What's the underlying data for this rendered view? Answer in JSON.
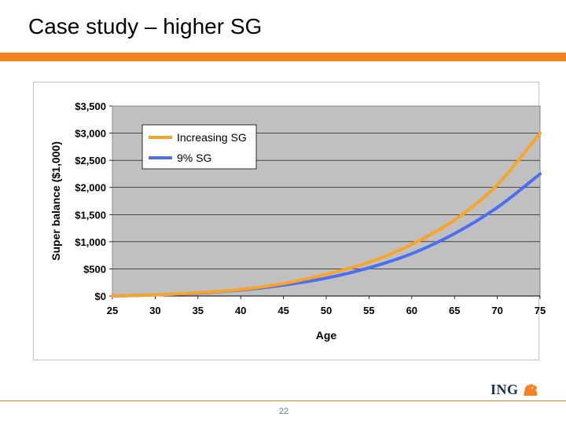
{
  "slide": {
    "title": "Case study – higher SG",
    "page_number": "22",
    "logo_text": "ING",
    "logo_icon": "lion-icon"
  },
  "colors": {
    "accent": "#f5821f",
    "plot_bg": "#c0c0c0",
    "increasing_sg": "#f7a42c",
    "nine_pct_sg": "#4a6ff0",
    "logo_text": "#1a2c5b",
    "page_number": "#5b7bbf"
  },
  "chart_data": {
    "type": "line",
    "title": "",
    "xlabel": "Age",
    "ylabel": "Super balance ($1,000)",
    "xlim": [
      25,
      75
    ],
    "ylim": [
      0,
      3500
    ],
    "x_ticks": [
      "25",
      "30",
      "35",
      "40",
      "45",
      "50",
      "55",
      "60",
      "65",
      "70",
      "75"
    ],
    "y_ticks": [
      "$0",
      "$500",
      "$1,000",
      "$1,500",
      "$2,000",
      "$2,500",
      "$3,000",
      "$3,500"
    ],
    "y_tick_values": [
      0,
      500,
      1000,
      1500,
      2000,
      2500,
      3000,
      3500
    ],
    "x_tick_values": [
      25,
      30,
      35,
      40,
      45,
      50,
      55,
      60,
      65,
      70,
      75
    ],
    "grid": "horizontal",
    "legend_position": "top-left",
    "x": [
      25,
      30,
      35,
      40,
      45,
      50,
      55,
      60,
      65,
      70,
      75
    ],
    "series": [
      {
        "name": "Increasing SG",
        "values": [
          0,
          20,
          60,
          120,
          230,
          400,
          620,
          950,
          1400,
          2050,
          3000
        ]
      },
      {
        "name": "9% SG",
        "values": [
          0,
          20,
          55,
          110,
          200,
          330,
          520,
          780,
          1150,
          1630,
          2250
        ]
      }
    ]
  }
}
